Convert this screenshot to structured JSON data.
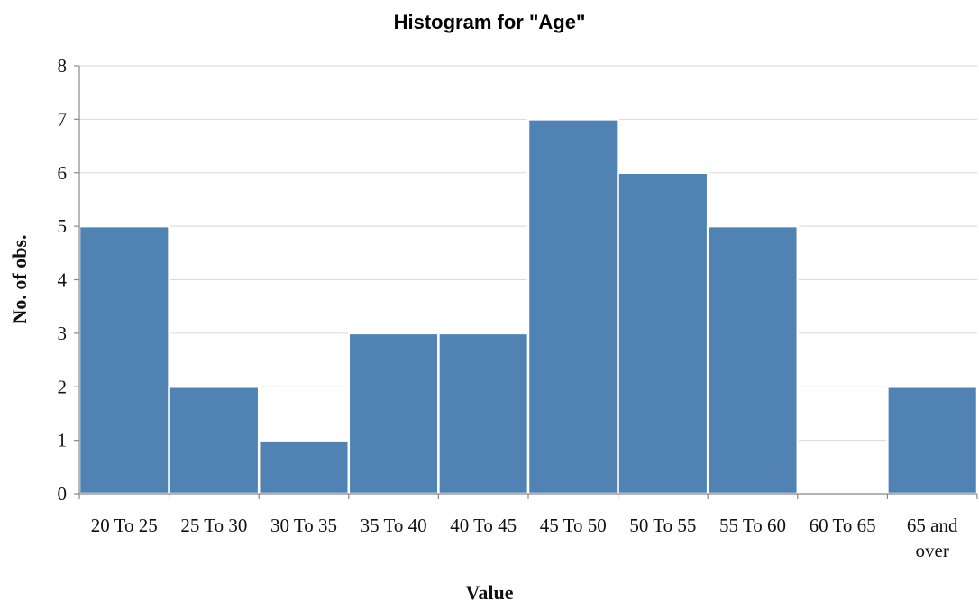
{
  "chart_data": {
    "type": "bar",
    "title": "Histogram for \"Age\"",
    "xlabel": "Value",
    "ylabel": "No. of obs.",
    "categories": [
      "20 To 25",
      "25 To 30",
      "30 To 35",
      "35 To 40",
      "40 To 45",
      "45 To 50",
      "50 To 55",
      "55 To 60",
      "60 To 65",
      "65 and over"
    ],
    "values": [
      5,
      2,
      1,
      3,
      3,
      7,
      6,
      5,
      0,
      2
    ],
    "ylim": [
      0,
      8
    ],
    "yticks": [
      0,
      1,
      2,
      3,
      4,
      5,
      6,
      7,
      8
    ],
    "grid": true,
    "legend": "none",
    "colors": {
      "bar": "#5182b4",
      "grid": "#d9d9d9",
      "axis": "#888888"
    }
  }
}
